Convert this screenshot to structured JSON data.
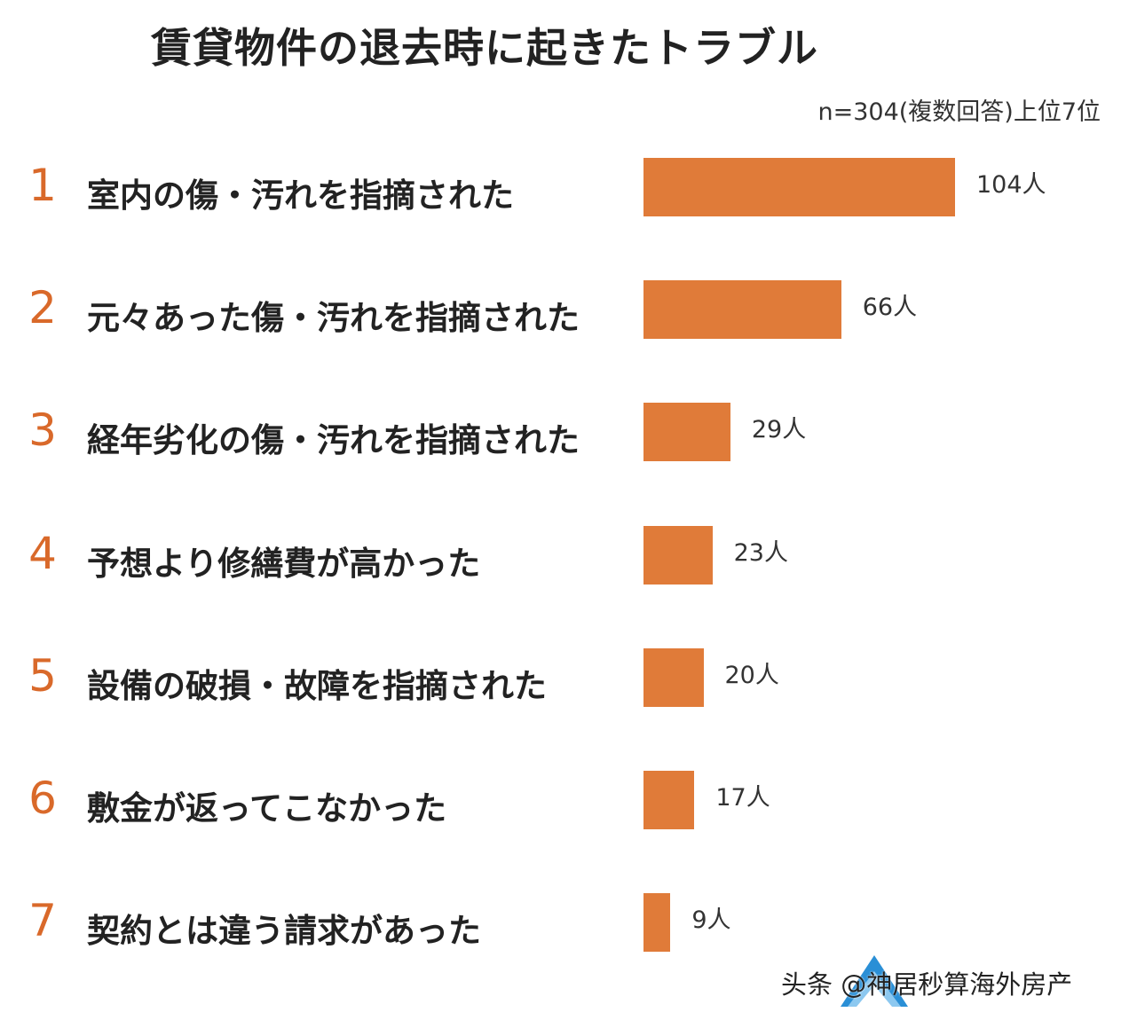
{
  "chart_data": {
    "type": "bar",
    "orientation": "horizontal",
    "title": "賃貸物件の退去時に起きたトラブル",
    "subtitle": "n=304(複数回答)上位7位",
    "categories": [
      "室内の傷・汚れを指摘された",
      "元々あった傷・汚れを指摘された",
      "経年劣化の傷・汚れを指摘された",
      "予想より修繕費が高かった",
      "設備の破損・故障を指摘された",
      "敷金が返ってこなかった",
      "契約とは違う請求があった"
    ],
    "ranks": [
      "1",
      "2",
      "3",
      "4",
      "5",
      "6",
      "7"
    ],
    "values": [
      104,
      66,
      29,
      23,
      20,
      17,
      9
    ],
    "value_labels": [
      "104人",
      "66人",
      "29人",
      "23人",
      "20人",
      "17人",
      "9人"
    ],
    "unit": "人",
    "xlim": [
      0,
      104
    ],
    "grid": false,
    "legend": "none",
    "bar_color": "#e07b39",
    "rank_color": "#d9692a"
  },
  "watermark": "头条 @神居秒算海外房产"
}
